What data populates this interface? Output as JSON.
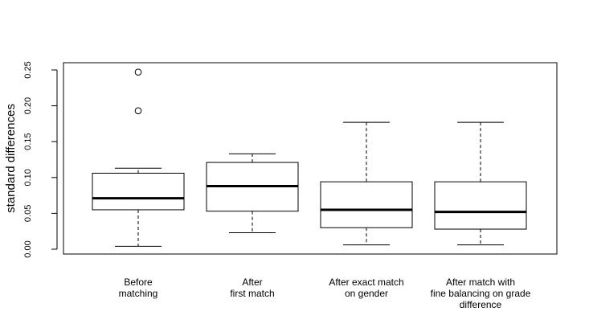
{
  "chart_data": {
    "type": "boxplot",
    "title": "",
    "ylabel": "standard differences",
    "xlabel": "",
    "ylim": [
      0,
      0.25
    ],
    "yticks": [
      "0.00",
      "0.05",
      "0.10",
      "0.15",
      "0.20",
      "0.25"
    ],
    "grid": false,
    "categories": [
      [
        "Before",
        "matching"
      ],
      [
        "After",
        "first match"
      ],
      [
        "After exact match",
        "on gender"
      ],
      [
        "After match with",
        "fine balancing on grade",
        "difference"
      ]
    ],
    "boxes": [
      {
        "whisker_low": 0.004,
        "q1": 0.055,
        "median": 0.071,
        "q3": 0.106,
        "whisker_high": 0.113,
        "outliers": [
          0.247,
          0.193
        ]
      },
      {
        "whisker_low": 0.023,
        "q1": 0.053,
        "median": 0.088,
        "q3": 0.121,
        "whisker_high": 0.133,
        "outliers": []
      },
      {
        "whisker_low": 0.006,
        "q1": 0.03,
        "median": 0.055,
        "q3": 0.094,
        "whisker_high": 0.177,
        "outliers": []
      },
      {
        "whisker_low": 0.006,
        "q1": 0.028,
        "median": 0.052,
        "q3": 0.094,
        "whisker_high": 0.177,
        "outliers": []
      }
    ]
  }
}
